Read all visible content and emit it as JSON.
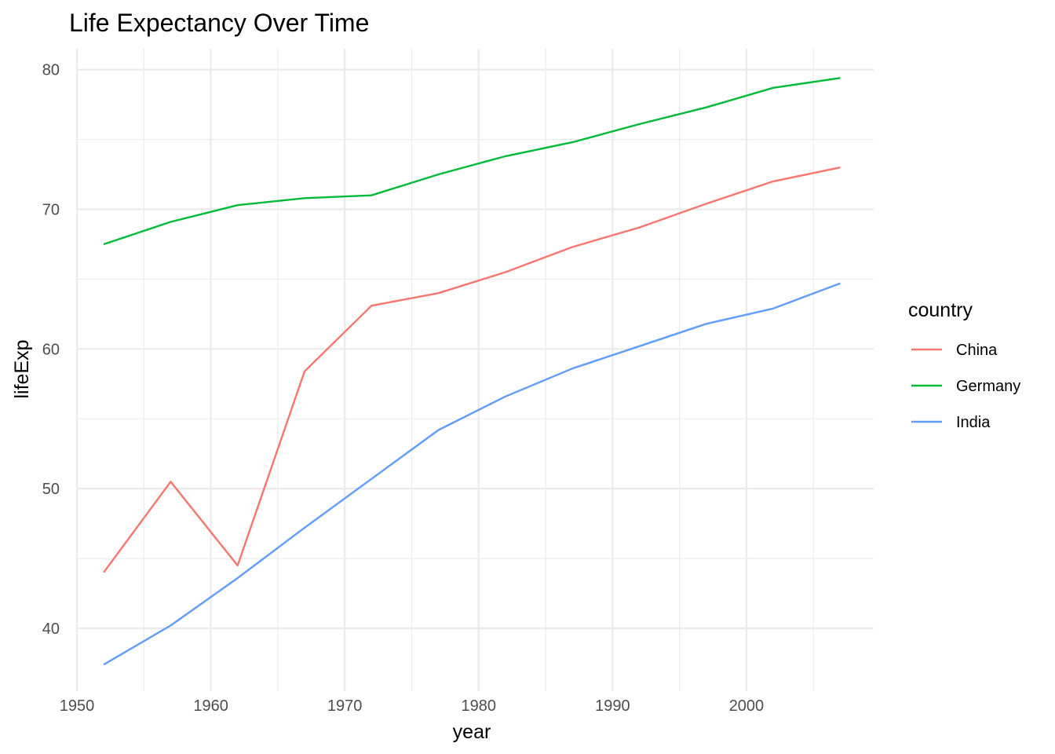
{
  "chart_data": {
    "type": "line",
    "title": "Life Expectancy Over Time",
    "xlabel": "year",
    "ylabel": "lifeExp",
    "xlim": [
      1950,
      2009.5
    ],
    "ylim": [
      35.5,
      81.5
    ],
    "x_ticks": [
      1950,
      1960,
      1970,
      1980,
      1990,
      2000
    ],
    "x_minor_ticks": [
      1955,
      1965,
      1975,
      1985,
      1995,
      2005
    ],
    "y_ticks": [
      40,
      50,
      60,
      70,
      80
    ],
    "y_minor_ticks": [
      45,
      55,
      65,
      75
    ],
    "grid": true,
    "legend": {
      "title": "country",
      "position": "right"
    },
    "x": [
      1952,
      1957,
      1962,
      1967,
      1972,
      1977,
      1982,
      1987,
      1992,
      1997,
      2002,
      2007
    ],
    "series": [
      {
        "name": "China",
        "color": "#F8766D",
        "values": [
          44.0,
          50.5,
          44.5,
          58.4,
          63.1,
          64.0,
          65.5,
          67.3,
          68.7,
          70.4,
          72.0,
          73.0
        ]
      },
      {
        "name": "Germany",
        "color": "#00BA38",
        "values": [
          67.5,
          69.1,
          70.3,
          70.8,
          71.0,
          72.5,
          73.8,
          74.8,
          76.1,
          77.3,
          78.7,
          79.4
        ]
      },
      {
        "name": "India",
        "color": "#619CFF",
        "values": [
          37.4,
          40.2,
          43.6,
          47.2,
          50.7,
          54.2,
          56.6,
          58.6,
          60.2,
          61.8,
          62.9,
          64.7
        ]
      }
    ]
  }
}
